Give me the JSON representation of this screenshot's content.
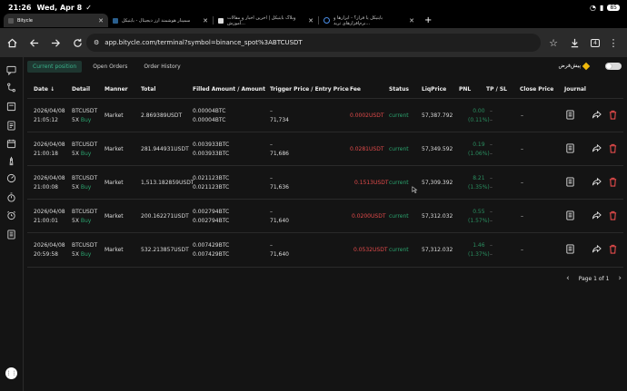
{
  "status_bar": {
    "time": "21:26",
    "date": "Wed, Apr 8",
    "battery": "85"
  },
  "tabs": [
    {
      "title": "Bitycle",
      "active": true
    },
    {
      "title": "سمینار هوشمند ارز دیجیتال - بایتیکل",
      "active": false
    },
    {
      "title": "وبلاگ بایتیکل | آخرین اخبار و مقالات آموزش...",
      "active": false
    },
    {
      "title": "بایتیکل یا فراز؟ - ابزارها و نرم‌افزارهای ترید...",
      "active": false
    }
  ],
  "toolbar": {
    "url": "app.bitycle.com/terminal?symbol=binance_spot%3ABTCUSDT",
    "tab_count": "4"
  },
  "subtabs": [
    "Current position",
    "Open Orders",
    "Order History"
  ],
  "signal_label": "پیش‌فرض",
  "columns": {
    "date": "Date",
    "detail": "Detail",
    "manner": "Manner",
    "total": "Total",
    "filled": "Filled Amount / Amount",
    "trigger": "Trigger Price / Entry Price",
    "fee": "Fee",
    "status": "Status",
    "liq": "LiqPrice",
    "pnl": "PNL",
    "tpsl": "TP / SL",
    "close": "Close Price",
    "journal": "Journal"
  },
  "rows": [
    {
      "date": "2026/04/08",
      "time": "21:05:12",
      "symbol": "BTCUSDT",
      "lev": "5X",
      "side": "Buy",
      "manner": "Market",
      "total": "2.869389USDT",
      "filled": "0.00004BTC",
      "amount": "0.00004BTC",
      "trigger": "–",
      "entry": "71,734",
      "fee": "0.0002USDT",
      "status": "current",
      "liq": "57,387.792",
      "pnl": "0.00",
      "pnl_pct": "(0.11%)",
      "tp": "–",
      "sl": "–",
      "close": "–"
    },
    {
      "date": "2026/04/08",
      "time": "21:00:18",
      "symbol": "BTCUSDT",
      "lev": "5X",
      "side": "Buy",
      "manner": "Market",
      "total": "281.944931USDT",
      "filled": "0.003933BTC",
      "amount": "0.003933BTC",
      "trigger": "–",
      "entry": "71,686",
      "fee": "0.0281USDT",
      "status": "current",
      "liq": "57,349.592",
      "pnl": "0.19",
      "pnl_pct": "(1.06%)",
      "tp": "–",
      "sl": "–",
      "close": "–"
    },
    {
      "date": "2026/04/08",
      "time": "21:00:08",
      "symbol": "BTCUSDT",
      "lev": "5X",
      "side": "Buy",
      "manner": "Market",
      "total": "1,513.182859USDT",
      "filled": "0.021123BTC",
      "amount": "0.021123BTC",
      "trigger": "–",
      "entry": "71,636",
      "fee": "0.1513USDT",
      "status": "current",
      "liq": "57,309.392",
      "pnl": "8.21",
      "pnl_pct": "(1.35%)",
      "tp": "–",
      "sl": "–",
      "close": "–"
    },
    {
      "date": "2026/04/08",
      "time": "21:00:01",
      "symbol": "BTCUSDT",
      "lev": "5X",
      "side": "Buy",
      "manner": "Market",
      "total": "200.162271USDT",
      "filled": "0.002794BTC",
      "amount": "0.002794BTC",
      "trigger": "–",
      "entry": "71,640",
      "fee": "0.0200USDT",
      "status": "current",
      "liq": "57,312.032",
      "pnl": "0.55",
      "pnl_pct": "(1.57%)",
      "tp": "–",
      "sl": "–",
      "close": "–"
    },
    {
      "date": "2026/04/08",
      "time": "20:59:58",
      "symbol": "BTCUSDT",
      "lev": "5X",
      "side": "Buy",
      "manner": "Market",
      "total": "532.213857USDT",
      "filled": "0.007429BTC",
      "amount": "0.007429BTC",
      "trigger": "–",
      "entry": "71,640",
      "fee": "0.0532USDT",
      "status": "current",
      "liq": "57,312.032",
      "pnl": "1.46",
      "pnl_pct": "(1.37%)",
      "tp": "–",
      "sl": "–",
      "close": "–"
    }
  ],
  "pagination": {
    "label": "Page 1 of 1"
  },
  "colors": {
    "accent_green": "#2aa36e",
    "fee_red": "#e44b4b",
    "active_tab_bg": "#1e3630"
  }
}
